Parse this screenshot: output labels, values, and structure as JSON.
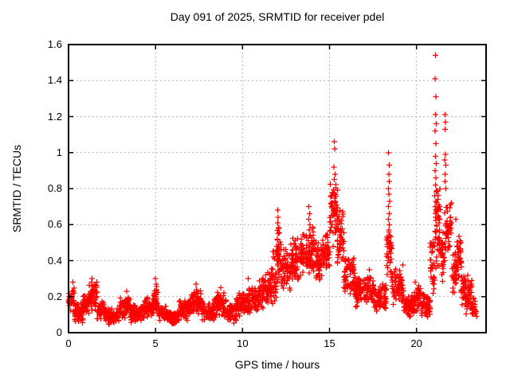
{
  "chart_data": {
    "type": "scatter",
    "title": "Day 091 of 2025, SRMTID for receiver pdel",
    "xlabel": "GPS time / hours",
    "ylabel": "SRMTID / TECUs",
    "xlim": [
      0,
      24
    ],
    "ylim": [
      0,
      1.6
    ],
    "x_ticks": [
      {
        "v": 0,
        "label": "0"
      },
      {
        "v": 5,
        "label": "5"
      },
      {
        "v": 10,
        "label": "10"
      },
      {
        "v": 15,
        "label": "15"
      },
      {
        "v": 20,
        "label": "20"
      }
    ],
    "y_ticks": [
      {
        "v": 0,
        "label": "0"
      },
      {
        "v": 0.2,
        "label": "0.2"
      },
      {
        "v": 0.4,
        "label": "0.4"
      },
      {
        "v": 0.6,
        "label": "0.6"
      },
      {
        "v": 0.8,
        "label": "0.8"
      },
      {
        "v": 1,
        "label": "1"
      },
      {
        "v": 1.2,
        "label": "1.2"
      },
      {
        "v": 1.4,
        "label": "1.4"
      },
      {
        "v": 1.6,
        "label": "1.6"
      }
    ],
    "grid": true,
    "grid_color": "#b3b3b3",
    "border_color": "#000000",
    "marker": {
      "shape": "plus",
      "color": "#ff0000",
      "size": 7
    },
    "series_name": "SRMTID",
    "bands": [
      [
        0.0,
        0.35,
        0.1,
        0.26,
        42
      ],
      [
        0.35,
        0.85,
        0.05,
        0.17,
        55
      ],
      [
        0.85,
        1.15,
        0.1,
        0.22,
        40
      ],
      [
        1.15,
        1.65,
        0.1,
        0.29,
        60
      ],
      [
        1.65,
        2.15,
        0.07,
        0.18,
        55
      ],
      [
        2.15,
        2.95,
        0.04,
        0.14,
        85
      ],
      [
        2.95,
        3.55,
        0.07,
        0.21,
        65
      ],
      [
        3.55,
        4.35,
        0.05,
        0.16,
        85
      ],
      [
        4.35,
        4.85,
        0.08,
        0.2,
        55
      ],
      [
        4.85,
        5.15,
        0.1,
        0.28,
        38
      ],
      [
        5.15,
        5.65,
        0.06,
        0.16,
        50
      ],
      [
        5.65,
        6.35,
        0.04,
        0.13,
        75
      ],
      [
        6.35,
        7.05,
        0.06,
        0.2,
        75
      ],
      [
        7.05,
        7.65,
        0.1,
        0.25,
        62
      ],
      [
        7.65,
        8.35,
        0.06,
        0.17,
        72
      ],
      [
        8.35,
        9.05,
        0.08,
        0.23,
        72
      ],
      [
        9.05,
        9.65,
        0.05,
        0.16,
        62
      ],
      [
        9.65,
        10.35,
        0.08,
        0.24,
        72
      ],
      [
        10.35,
        10.95,
        0.1,
        0.29,
        62
      ],
      [
        10.95,
        11.55,
        0.12,
        0.34,
        62
      ],
      [
        11.55,
        11.95,
        0.15,
        0.4,
        45
      ],
      [
        11.95,
        12.25,
        0.25,
        0.6,
        40
      ],
      [
        12.25,
        12.75,
        0.2,
        0.5,
        50
      ],
      [
        12.75,
        13.35,
        0.25,
        0.56,
        62
      ],
      [
        13.35,
        13.78,
        0.28,
        0.58,
        48
      ],
      [
        13.78,
        14.12,
        0.3,
        0.62,
        42
      ],
      [
        14.12,
        14.55,
        0.27,
        0.52,
        46
      ],
      [
        14.55,
        15.02,
        0.32,
        0.57,
        52
      ],
      [
        15.02,
        15.45,
        0.45,
        0.88,
        58
      ],
      [
        15.45,
        15.82,
        0.33,
        0.7,
        45
      ],
      [
        15.82,
        16.45,
        0.2,
        0.44,
        62
      ],
      [
        16.45,
        17.15,
        0.13,
        0.32,
        70
      ],
      [
        17.15,
        17.55,
        0.15,
        0.34,
        44
      ],
      [
        17.55,
        18.25,
        0.1,
        0.28,
        72
      ],
      [
        18.25,
        18.58,
        0.28,
        0.6,
        36
      ],
      [
        18.58,
        19.25,
        0.14,
        0.38,
        66
      ],
      [
        19.25,
        19.85,
        0.08,
        0.22,
        62
      ],
      [
        19.85,
        20.25,
        0.1,
        0.27,
        44
      ],
      [
        20.25,
        20.78,
        0.08,
        0.22,
        56
      ],
      [
        20.78,
        21.05,
        0.18,
        0.55,
        32
      ],
      [
        21.05,
        21.38,
        0.33,
        0.85,
        48
      ],
      [
        21.38,
        21.62,
        0.28,
        0.58,
        30
      ],
      [
        21.62,
        22.02,
        0.42,
        0.75,
        46
      ],
      [
        22.02,
        22.32,
        0.2,
        0.45,
        34
      ],
      [
        22.32,
        22.58,
        0.28,
        0.58,
        36
      ],
      [
        22.58,
        22.82,
        0.14,
        0.34,
        30
      ],
      [
        22.82,
        23.18,
        0.1,
        0.32,
        40
      ],
      [
        23.18,
        23.45,
        0.08,
        0.2,
        28
      ]
    ],
    "points": [
      [
        12.02,
        0.68
      ],
      [
        12.05,
        0.64
      ],
      [
        12.03,
        0.61
      ],
      [
        12.07,
        0.58
      ],
      [
        12.04,
        0.55
      ],
      [
        12.0,
        0.52
      ],
      [
        12.06,
        0.49
      ],
      [
        12.02,
        0.46
      ],
      [
        12.08,
        0.43
      ],
      [
        11.98,
        0.4
      ],
      [
        11.8,
        0.45
      ],
      [
        11.83,
        0.41
      ],
      [
        13.82,
        0.7
      ],
      [
        13.86,
        0.66
      ],
      [
        13.8,
        0.63
      ],
      [
        13.88,
        0.6
      ],
      [
        13.84,
        0.57
      ],
      [
        13.9,
        0.54
      ],
      [
        13.79,
        0.51
      ],
      [
        15.27,
        1.06
      ],
      [
        15.3,
        1.02
      ],
      [
        15.25,
        0.92
      ],
      [
        15.31,
        0.88
      ],
      [
        15.28,
        0.85
      ],
      [
        18.4,
        1.0
      ],
      [
        18.43,
        0.93
      ],
      [
        18.41,
        0.88
      ],
      [
        18.44,
        0.84
      ],
      [
        18.39,
        0.8
      ],
      [
        18.42,
        0.77
      ],
      [
        18.45,
        0.73
      ],
      [
        18.4,
        0.7
      ],
      [
        18.43,
        0.66
      ],
      [
        18.38,
        0.63
      ],
      [
        18.44,
        0.6
      ],
      [
        18.41,
        0.57
      ],
      [
        18.46,
        0.54
      ],
      [
        18.39,
        0.51
      ],
      [
        18.42,
        0.48
      ],
      [
        18.44,
        0.45
      ],
      [
        18.37,
        0.42
      ],
      [
        18.47,
        0.39
      ],
      [
        18.35,
        0.36
      ],
      [
        18.5,
        0.34
      ],
      [
        21.1,
        1.54
      ],
      [
        21.08,
        1.41
      ],
      [
        21.12,
        1.31
      ],
      [
        21.09,
        1.21
      ],
      [
        21.13,
        1.16
      ],
      [
        21.07,
        1.12
      ],
      [
        21.11,
        1.05
      ],
      [
        21.1,
        0.98
      ],
      [
        21.14,
        0.94
      ],
      [
        21.06,
        0.9
      ],
      [
        21.12,
        0.86
      ],
      [
        21.09,
        0.82
      ],
      [
        21.15,
        0.79
      ],
      [
        21.05,
        0.76
      ],
      [
        21.11,
        0.73
      ],
      [
        21.08,
        0.7
      ],
      [
        21.13,
        0.67
      ],
      [
        21.1,
        0.64
      ],
      [
        21.63,
        1.21
      ],
      [
        21.67,
        1.17
      ],
      [
        21.64,
        1.13
      ],
      [
        21.66,
        0.99
      ],
      [
        21.62,
        0.96
      ],
      [
        21.68,
        0.93
      ],
      [
        21.65,
        0.88
      ],
      [
        21.63,
        0.84
      ],
      [
        21.69,
        0.8
      ],
      [
        22.25,
        0.63
      ],
      [
        5.0,
        0.3
      ],
      [
        5.03,
        0.27
      ],
      [
        1.35,
        0.3
      ],
      [
        0.25,
        0.28
      ],
      [
        10.32,
        0.3
      ],
      [
        7.32,
        0.27
      ],
      [
        8.75,
        0.25
      ],
      [
        17.3,
        0.35
      ],
      [
        11.75,
        0.45
      ],
      [
        11.78,
        0.42
      ],
      [
        19.92,
        0.28
      ],
      [
        3.35,
        0.23
      ]
    ]
  }
}
